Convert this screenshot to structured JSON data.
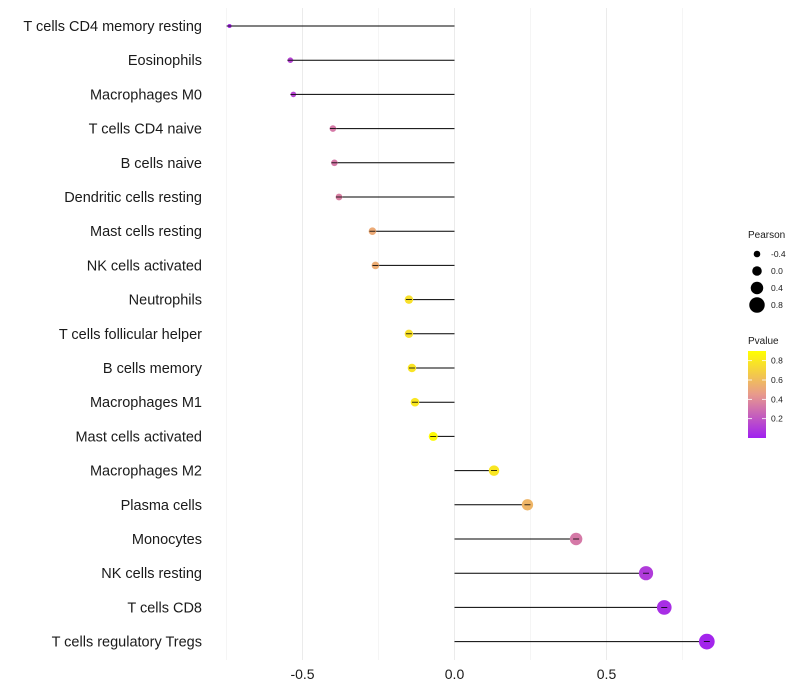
{
  "chart_data": {
    "type": "lollipop",
    "xlabel": "",
    "ylabel": "",
    "xlim": [
      -0.75,
      0.85
    ],
    "xticks": [
      {
        "value": -0.5,
        "label": "-0.5"
      },
      {
        "value": 0.0,
        "label": "0.0"
      },
      {
        "value": 0.5,
        "label": "0.5"
      }
    ],
    "grid": "vertical",
    "points": [
      {
        "category": "T cells CD4 memory resting",
        "value": -0.74,
        "pvalue": 0.03
      },
      {
        "category": "Eosinophils",
        "value": -0.54,
        "pvalue": 0.13
      },
      {
        "category": "Macrophages M0",
        "value": -0.53,
        "pvalue": 0.14
      },
      {
        "category": "T cells CD4 naive",
        "value": -0.4,
        "pvalue": 0.33
      },
      {
        "category": "B cells naive",
        "value": -0.395,
        "pvalue": 0.33
      },
      {
        "category": "Dendritic cells resting",
        "value": -0.38,
        "pvalue": 0.35
      },
      {
        "category": "Mast cells resting",
        "value": -0.27,
        "pvalue": 0.52
      },
      {
        "category": "NK cells activated",
        "value": -0.26,
        "pvalue": 0.53
      },
      {
        "category": "Neutrophils",
        "value": -0.15,
        "pvalue": 0.76
      },
      {
        "category": "T cells follicular helper",
        "value": -0.15,
        "pvalue": 0.76
      },
      {
        "category": "B cells memory",
        "value": -0.14,
        "pvalue": 0.78
      },
      {
        "category": "Macrophages M1",
        "value": -0.13,
        "pvalue": 0.79
      },
      {
        "category": "Mast cells activated",
        "value": -0.07,
        "pvalue": 0.88
      },
      {
        "category": "Macrophages M2",
        "value": 0.13,
        "pvalue": 0.79
      },
      {
        "category": "Plasma cells",
        "value": 0.24,
        "pvalue": 0.57
      },
      {
        "category": "Monocytes",
        "value": 0.4,
        "pvalue": 0.33
      },
      {
        "category": "NK cells resting",
        "value": 0.63,
        "pvalue": 0.1
      },
      {
        "category": "T cells CD8",
        "value": 0.69,
        "pvalue": 0.05
      },
      {
        "category": "T cells regulatory  Tregs",
        "value": 0.83,
        "pvalue": 0.02
      }
    ],
    "legend": {
      "position": "right",
      "size": {
        "title": "Pearson",
        "entries": [
          {
            "label": "-0.4",
            "value": -0.4
          },
          {
            "label": "0.0",
            "value": 0.0
          },
          {
            "label": "0.4",
            "value": 0.4
          },
          {
            "label": "0.8",
            "value": 0.8
          }
        ]
      },
      "color": {
        "title": "Pvalue",
        "range": [
          0.0,
          0.9
        ],
        "ticks": [
          {
            "label": "0.8",
            "value": 0.8
          },
          {
            "label": "0.6",
            "value": 0.6
          },
          {
            "label": "0.4",
            "value": 0.4
          },
          {
            "label": "0.2",
            "value": 0.2
          }
        ],
        "low_color": "#a020f0",
        "mid_color": "#e89a8c",
        "high_color": "#ffff00"
      }
    }
  }
}
